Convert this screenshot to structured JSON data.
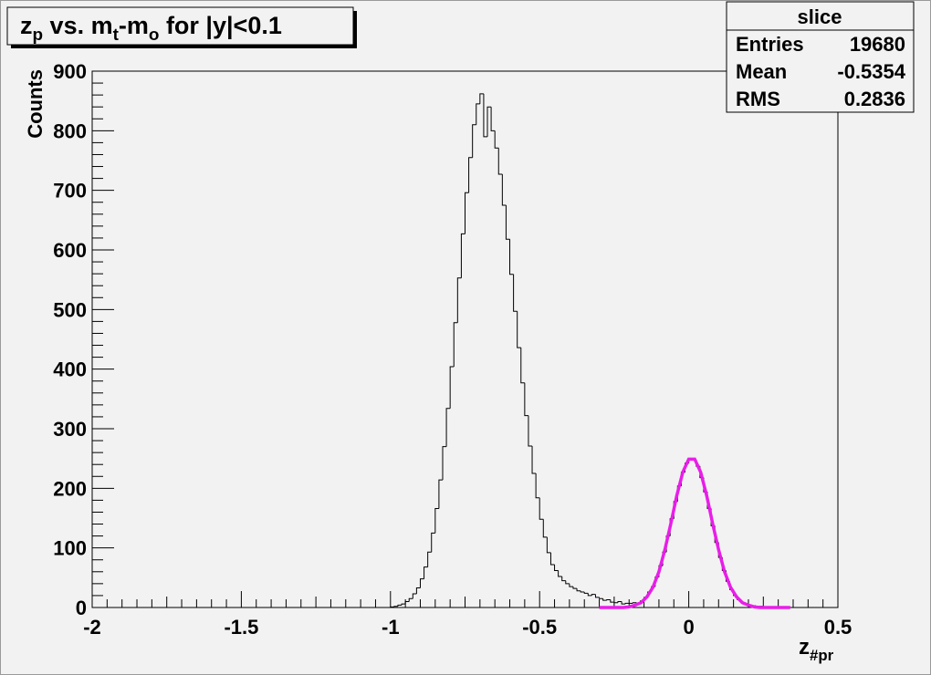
{
  "chart_data": {
    "type": "histogram",
    "title": [
      {
        "text": "z"
      },
      {
        "text": "p",
        "sub": true
      },
      {
        "text": " vs. m"
      },
      {
        "text": "t",
        "sub": true
      },
      {
        "text": "-m"
      },
      {
        "text": "o",
        "sub": true
      },
      {
        "text": " for |y|<0.1"
      }
    ],
    "x_label": [
      {
        "text": "z"
      },
      {
        "text": "#pr",
        "sub": true
      }
    ],
    "y_label": "Counts",
    "color": "#000000",
    "xlim": [
      -2,
      0.5
    ],
    "ylim": [
      0,
      900
    ],
    "xticks": [
      -2,
      -1.5,
      -1,
      -0.5,
      0,
      0.5
    ],
    "yticks": [
      0,
      100,
      200,
      300,
      400,
      500,
      600,
      700,
      800,
      900
    ],
    "bins": [
      -1,
      -0.9875,
      -0.975,
      -0.9625,
      -0.95,
      -0.9375,
      -0.925,
      -0.9125,
      -0.9,
      -0.8875,
      -0.875,
      -0.8625,
      -0.85,
      -0.8375,
      -0.825,
      -0.8125,
      -0.8,
      -0.7875,
      -0.775,
      -0.7625,
      -0.75,
      -0.7375,
      -0.725,
      -0.7125,
      -0.7,
      -0.6875,
      -0.675,
      -0.6625,
      -0.65,
      -0.6375,
      -0.625,
      -0.6125,
      -0.6,
      -0.5875,
      -0.575,
      -0.5625,
      -0.55,
      -0.5375,
      -0.525,
      -0.5125,
      -0.5,
      -0.4875,
      -0.475,
      -0.4625,
      -0.45,
      -0.4375,
      -0.425,
      -0.4125,
      -0.4,
      -0.3875,
      -0.375,
      -0.3625,
      -0.35,
      -0.3375,
      -0.325,
      -0.3125,
      -0.3,
      -0.2875,
      -0.275,
      -0.2625,
      -0.25,
      -0.2375,
      -0.225,
      -0.2125,
      -0.2,
      -0.1875,
      -0.175,
      -0.1625,
      -0.15,
      -0.1375,
      -0.125,
      -0.1125,
      -0.1,
      -0.0875,
      -0.075,
      -0.0625,
      -0.05,
      -0.0375,
      -0.025,
      -0.0125,
      0,
      0.0125,
      0.025,
      0.0375,
      0.05,
      0.0625,
      0.075,
      0.0875,
      0.1,
      0.1125,
      0.125,
      0.1375,
      0.15,
      0.1625,
      0.175,
      0.1875,
      0.2,
      0.2125,
      0.225,
      0.2375,
      0.25,
      0.2625,
      0.275,
      0.2875,
      0.3
    ],
    "values": [
      1,
      2,
      4,
      6,
      10,
      15,
      23,
      33,
      48,
      68,
      93,
      125,
      166,
      214,
      270,
      334,
      404,
      478,
      553,
      627,
      696,
      755,
      810,
      845,
      862,
      790,
      840,
      800,
      771,
      727,
      675,
      618,
      559,
      497,
      436,
      377,
      322,
      271,
      225,
      184,
      148,
      118,
      92,
      72,
      62,
      52,
      45,
      40,
      35,
      32,
      28,
      26,
      24,
      20,
      22,
      17,
      15,
      12,
      13,
      9,
      8,
      10,
      6,
      7,
      7,
      8,
      6,
      11,
      17,
      26,
      35,
      51,
      70,
      93,
      120,
      149,
      178,
      204,
      227,
      242,
      250,
      248,
      237,
      218,
      194,
      166,
      137,
      109,
      84,
      62,
      44,
      30,
      20,
      13,
      8,
      5,
      4,
      3,
      2,
      2,
      1,
      1,
      0,
      0
    ],
    "fit": {
      "type": "line",
      "color": "#e81ee8",
      "x": [
        -0.3,
        -0.28,
        -0.26,
        -0.24,
        -0.22,
        -0.2,
        -0.18,
        -0.16,
        -0.14,
        -0.12,
        -0.1,
        -0.08,
        -0.06,
        -0.04,
        -0.02,
        0,
        0.02,
        0.04,
        0.06,
        0.08,
        0.1,
        0.12,
        0.14,
        0.16,
        0.18,
        0.2,
        0.22,
        0.24,
        0.26,
        0.28,
        0.3,
        0.32,
        0.34
      ],
      "values": [
        0,
        0,
        0,
        0,
        0,
        1,
        4,
        8,
        18,
        34,
        60,
        97,
        141,
        188,
        227,
        249,
        249,
        227,
        188,
        141,
        97,
        60,
        34,
        18,
        8,
        4,
        1,
        0,
        0,
        0,
        0,
        0,
        0
      ]
    },
    "stats": {
      "title": "slice",
      "rows": [
        [
          "Entries",
          19680
        ],
        [
          "Mean",
          -0.5354
        ],
        [
          "RMS",
          0.2836
        ]
      ]
    }
  }
}
